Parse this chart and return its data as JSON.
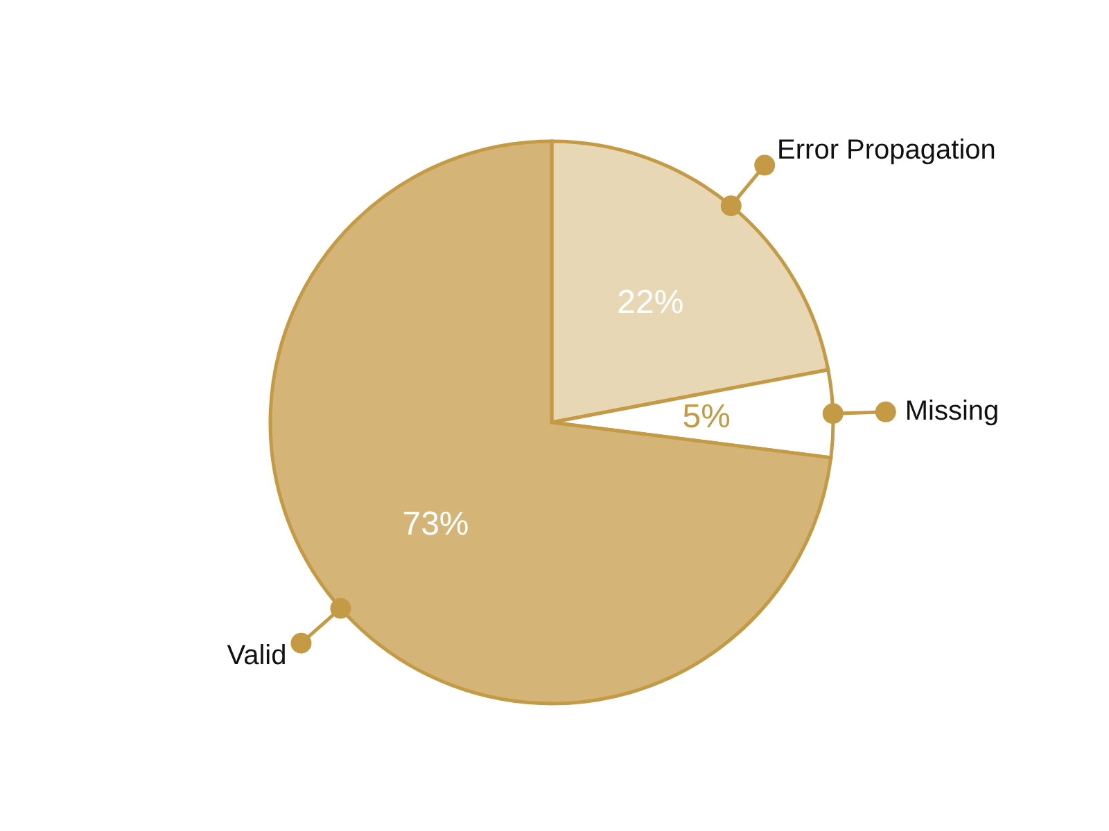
{
  "chart_data": {
    "type": "pie",
    "categories": [
      "Error Propagation",
      "Missing",
      "Valid"
    ],
    "values": [
      22,
      5,
      73
    ],
    "colors": [
      "#e8d7b4",
      "#ffffff",
      "#d4b577"
    ],
    "value_labels": [
      "22%",
      "5%",
      "73%"
    ]
  }
}
